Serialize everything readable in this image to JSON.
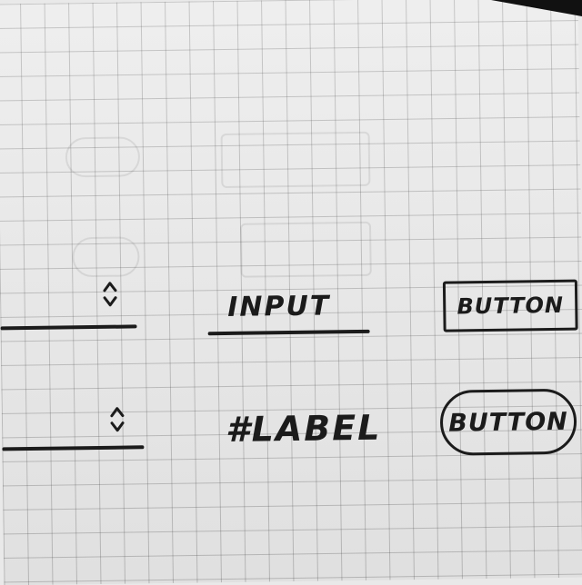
{
  "sketch": {
    "input_label": "INPUT",
    "label_text": "#LABEL",
    "button_rect_label": "BUTTON",
    "button_pill_label": "BUTTON",
    "stepper_1_icon": "up-down-chevron-icon",
    "stepper_2_icon": "up-down-chevron-icon"
  },
  "colors": {
    "ink": "#1b1b1b",
    "paper": "#ececec",
    "grid": "#8a8a8a"
  }
}
